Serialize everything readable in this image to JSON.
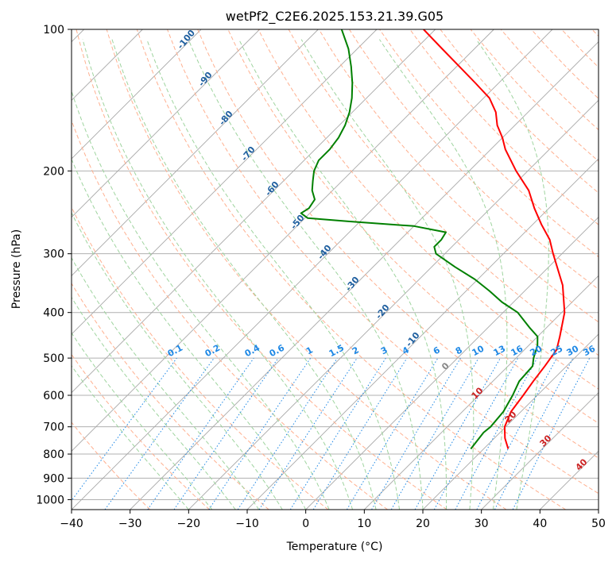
{
  "chart_data": {
    "type": "line",
    "subtype": "skew-T log-p diagram",
    "title": "wetPf2_C2E6.2025.153.21.39.G05",
    "xlabel": "Temperature (°C)",
    "ylabel": "Pressure (hPa)",
    "xlim": [
      -40,
      50
    ],
    "ylim": [
      1050,
      100
    ],
    "y_scale": "log",
    "grid": true,
    "x_ticks": [
      -40,
      -30,
      -20,
      -10,
      0,
      10,
      20,
      30,
      40,
      50
    ],
    "y_ticks": [
      100,
      200,
      300,
      400,
      500,
      600,
      700,
      800,
      900,
      1000
    ],
    "series": [
      {
        "color": "#ff0000",
        "points": [
          [
            780,
            24.2
          ],
          [
            740,
            21.8
          ],
          [
            700,
            19.8
          ],
          [
            650,
            18.3
          ],
          [
            600,
            17.6
          ],
          [
            560,
            16.9
          ],
          [
            520,
            16.3
          ],
          [
            480,
            15.5
          ],
          [
            450,
            13.8
          ],
          [
            400,
            10.5
          ],
          [
            350,
            5.5
          ],
          [
            300,
            -1.5
          ],
          [
            280,
            -4.5
          ],
          [
            260,
            -8.5
          ],
          [
            240,
            -12.5
          ],
          [
            220,
            -16.5
          ],
          [
            200,
            -22.0
          ],
          [
            180,
            -27.5
          ],
          [
            170,
            -30.0
          ],
          [
            160,
            -33.0
          ],
          [
            150,
            -35.5
          ],
          [
            140,
            -39.0
          ],
          [
            130,
            -44.0
          ],
          [
            120,
            -49.5
          ],
          [
            110,
            -55.5
          ],
          [
            100,
            -62.0
          ]
        ]
      },
      {
        "color": "#008000",
        "points": [
          [
            780,
            17.8
          ],
          [
            750,
            17.5
          ],
          [
            720,
            17.2
          ],
          [
            700,
            17.4
          ],
          [
            650,
            17.0
          ],
          [
            600,
            15.8
          ],
          [
            560,
            14.5
          ],
          [
            520,
            14.2
          ],
          [
            500,
            13.0
          ],
          [
            470,
            11.5
          ],
          [
            450,
            10.0
          ],
          [
            430,
            7.0
          ],
          [
            400,
            2.5
          ],
          [
            380,
            -2.0
          ],
          [
            360,
            -6.0
          ],
          [
            340,
            -10.5
          ],
          [
            320,
            -16.0
          ],
          [
            300,
            -21.5
          ],
          [
            290,
            -23.0
          ],
          [
            280,
            -23.0
          ],
          [
            270,
            -23.5
          ],
          [
            262,
            -30.0
          ],
          [
            256,
            -42.0
          ],
          [
            252,
            -49.5
          ],
          [
            246,
            -51.5
          ],
          [
            240,
            -51.0
          ],
          [
            230,
            -51.5
          ],
          [
            220,
            -53.5
          ],
          [
            210,
            -55.0
          ],
          [
            200,
            -56.5
          ],
          [
            190,
            -57.5
          ],
          [
            180,
            -57.5
          ],
          [
            170,
            -58.0
          ],
          [
            160,
            -59.0
          ],
          [
            150,
            -60.5
          ],
          [
            140,
            -62.5
          ],
          [
            130,
            -65.0
          ],
          [
            120,
            -68.0
          ],
          [
            110,
            -71.5
          ],
          [
            100,
            -76.0
          ]
        ]
      }
    ],
    "dry_adiabat_labels": [
      "-100",
      "-90",
      "-80",
      "-70",
      "-60",
      "-50",
      "-40",
      "-30",
      "-20",
      "-10"
    ],
    "mixing_ratio_labels": [
      "0.1",
      "0.2",
      "0.4",
      "0.6",
      "1",
      "1.5",
      "2",
      "3",
      "4",
      "6",
      "8",
      "10",
      "13",
      "16",
      "20",
      "25",
      "30",
      "36"
    ],
    "moist_adiabat_labels": [
      "0",
      "10",
      "20",
      "30",
      "40"
    ],
    "colors": {
      "temperature": "#ff0000",
      "dewpoint": "#008000",
      "dry_adiabat": "#ffb090",
      "moist_adiabat": "#9fd49f",
      "mixing_ratio": "#1e88e5",
      "isotherm": "#808080",
      "dry_label": "#1f5f9f",
      "moist_label": "#cc2222"
    }
  }
}
